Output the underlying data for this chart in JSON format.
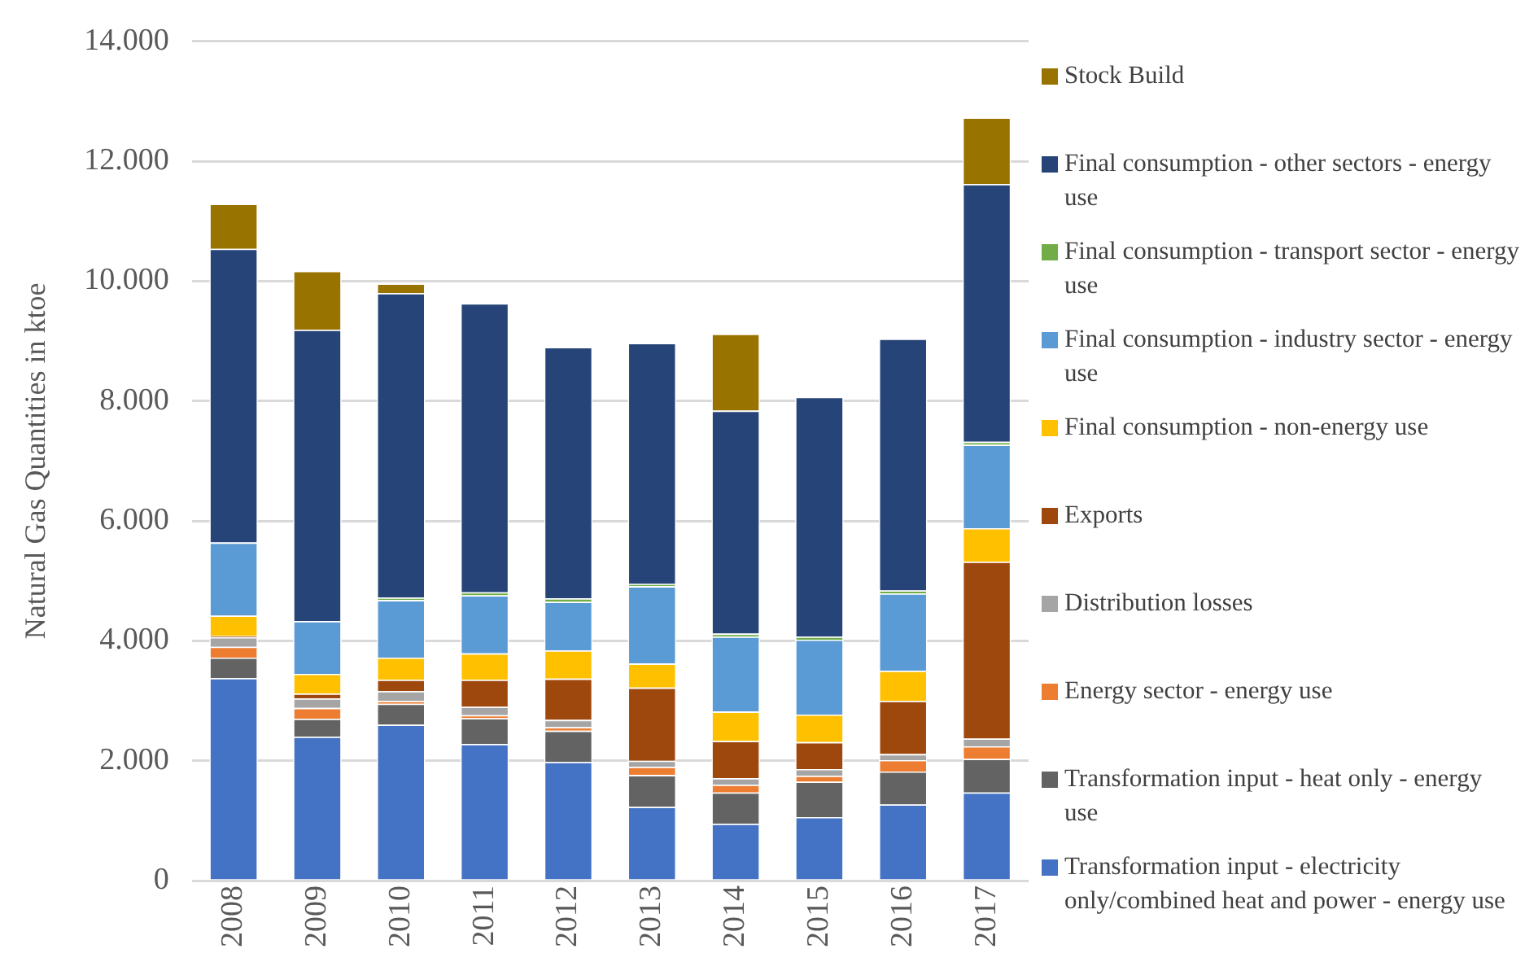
{
  "chart_data": {
    "type": "bar",
    "stacked": true,
    "ylabel": "Natural Gas Quantities in ktoe",
    "categories": [
      "2008",
      "2009",
      "2010",
      "2011",
      "2012",
      "2013",
      "2014",
      "2015",
      "2016",
      "2017"
    ],
    "ylim": [
      0,
      14000
    ],
    "yticks": [
      {
        "value": 0,
        "label": "0"
      },
      {
        "value": 2000,
        "label": "2.000"
      },
      {
        "value": 4000,
        "label": "4.000"
      },
      {
        "value": 6000,
        "label": "6.000"
      },
      {
        "value": 8000,
        "label": "8.000"
      },
      {
        "value": 10000,
        "label": "10.000"
      },
      {
        "value": 12000,
        "label": "12.000"
      },
      {
        "value": 14000,
        "label": "14.000"
      }
    ],
    "grid": "y",
    "legend": "right",
    "series": [
      {
        "name": "Transformation input - electricity only/combined heat and power - energy use",
        "color": "#4472c4",
        "values": [
          3380,
          2400,
          2600,
          2280,
          1980,
          1230,
          950,
          1060,
          1270,
          1470
        ]
      },
      {
        "name": "Transformation input - heat only - energy use",
        "color": "#636363",
        "values": [
          340,
          300,
          350,
          430,
          520,
          530,
          520,
          590,
          550,
          560
        ]
      },
      {
        "name": "Energy sector - energy use",
        "color": "#ed7d31",
        "values": [
          180,
          180,
          50,
          50,
          60,
          140,
          130,
          100,
          190,
          210
        ]
      },
      {
        "name": "Distribution losses",
        "color": "#a5a5a5",
        "values": [
          160,
          160,
          160,
          140,
          120,
          100,
          110,
          110,
          100,
          130
        ]
      },
      {
        "name": "Exports",
        "color": "#9e480e",
        "values": [
          20,
          80,
          190,
          450,
          690,
          1220,
          620,
          450,
          890,
          2950
        ]
      },
      {
        "name": "Final consumption - non-energy use",
        "color": "#ffc000",
        "values": [
          340,
          330,
          370,
          440,
          470,
          400,
          490,
          460,
          500,
          560
        ]
      },
      {
        "name": "Final consumption - industry sector - energy use",
        "color": "#5b9bd5",
        "values": [
          1220,
          880,
          960,
          970,
          810,
          1290,
          1250,
          1250,
          1290,
          1390
        ]
      },
      {
        "name": "Final consumption - transport sector - energy use",
        "color": "#70ad47",
        "values": [
          null,
          null,
          40,
          50,
          60,
          40,
          50,
          50,
          50,
          50
        ]
      },
      {
        "name": "Final consumption - other sectors - energy use",
        "color": "#264478",
        "values": [
          4900,
          4860,
          5080,
          4820,
          4190,
          4020,
          3720,
          4000,
          4200,
          4300
        ]
      },
      {
        "name": "Stock Build",
        "color": "#997300",
        "values": [
          750,
          980,
          160,
          0,
          0,
          0,
          1280,
          0,
          0,
          1110
        ]
      }
    ]
  }
}
